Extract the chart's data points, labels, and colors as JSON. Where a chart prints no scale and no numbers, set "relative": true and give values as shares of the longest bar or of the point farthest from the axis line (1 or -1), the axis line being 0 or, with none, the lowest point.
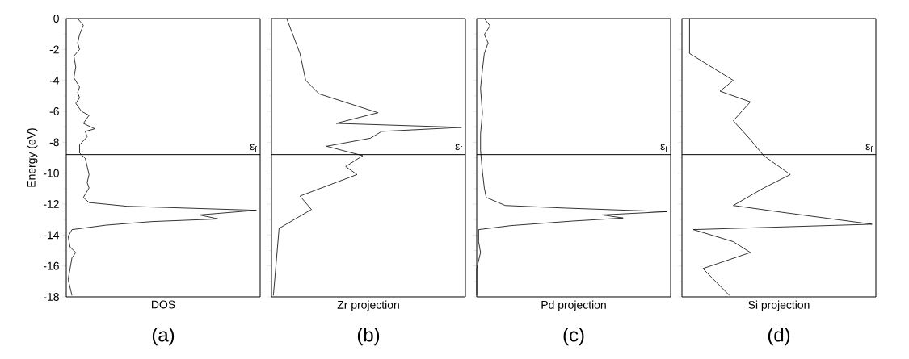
{
  "chart_data": [
    {
      "type": "line",
      "orientation": "horizontal",
      "relative": true,
      "title": "(a)",
      "xlabel": "DOS",
      "ylabel": "Energy (eV)",
      "color": "#000000",
      "marker": "none",
      "x": [
        0,
        -0.43,
        -1.04,
        -1.57,
        -2.0,
        -2.43,
        -3.13,
        -3.83,
        -4.43,
        -4.78,
        -5.13,
        -5.48,
        -6.0,
        -6.26,
        -6.78,
        -7.13,
        -7.3,
        -7.65,
        -8.17,
        -8.7,
        -9.04,
        -9.57,
        -10.09,
        -10.61,
        -10.96,
        -11.57,
        -11.9,
        -12.14,
        -12.4,
        -12.7,
        -12.96,
        -13.13,
        -13.36,
        -13.65,
        -14.09,
        -14.78,
        -15.13,
        -15.48,
        -16.87,
        -17.91
      ],
      "values": [
        0.06,
        0.09,
        0.07,
        0.06,
        0.07,
        0.04,
        0.05,
        0.04,
        0.07,
        0.06,
        0.07,
        0.05,
        0.08,
        0.12,
        0.09,
        0.15,
        0.1,
        0.11,
        0.07,
        0.07,
        0.1,
        0.11,
        0.12,
        0.11,
        0.12,
        0.09,
        0.12,
        0.32,
        1,
        0.7,
        0.8,
        0.45,
        0.21,
        0.03,
        0.01,
        0.02,
        0.05,
        0.03,
        0.01,
        0.03
      ],
      "ylim": [
        -18,
        0
      ],
      "yticks": [
        0,
        -2,
        -4,
        -6,
        -8,
        -10,
        -12,
        -14,
        -16,
        -18
      ],
      "tick_labels": "y",
      "ref_lines": [
        {
          "axis": "y",
          "value": -8.8,
          "label": "ε$_{f}$"
        }
      ]
    },
    {
      "type": "line",
      "orientation": "horizontal",
      "relative": true,
      "title": "(b)",
      "xlabel": "Zr projection",
      "color": "#000000",
      "marker": "none",
      "x": [
        0,
        -2.26,
        -4.0,
        -4.87,
        -6.09,
        -6.78,
        -7.04,
        -7.3,
        -7.74,
        -8.26,
        -8.87,
        -9.57,
        -10.09,
        -11.48,
        -12.35,
        -13.57,
        -17.91
      ],
      "values": [
        0.08,
        0.15,
        0.18,
        0.25,
        0.56,
        0.34,
        1,
        0.58,
        0.52,
        0.29,
        0.48,
        0.39,
        0.45,
        0.15,
        0.21,
        0.04,
        0.01
      ],
      "ylim": [
        -18,
        0
      ],
      "yticks": [
        0,
        -2,
        -4,
        -6,
        -8,
        -10,
        -12,
        -14,
        -16,
        -18
      ],
      "tick_labels": false,
      "ref_lines": [
        {
          "axis": "y",
          "value": -8.8,
          "label": "ε$_{f}$"
        }
      ]
    },
    {
      "type": "line",
      "orientation": "horizontal",
      "relative": true,
      "title": "(c)",
      "xlabel": "Pd projection",
      "color": "#000000",
      "marker": "none",
      "x": [
        0,
        -0.47,
        -1.04,
        -1.57,
        -2.26,
        -3.3,
        -4.52,
        -6.09,
        -7.48,
        -8.52,
        -9.91,
        -10.96,
        -11.57,
        -12.09,
        -12.26,
        -12.49,
        -12.7,
        -12.9,
        -13.1,
        -13.39,
        -13.65,
        -14.43,
        -15.13,
        -16.17,
        -17.91
      ],
      "values": [
        0.04,
        0.07,
        0.04,
        0.06,
        0.04,
        0.03,
        0.02,
        0.03,
        0.02,
        0.02,
        0.03,
        0.04,
        0.05,
        0.15,
        0.47,
        1,
        0.66,
        0.77,
        0.5,
        0.18,
        0.01,
        0.01,
        0.02,
        0,
        0
      ],
      "ylim": [
        -18,
        0
      ],
      "yticks": [
        0,
        -2,
        -4,
        -6,
        -8,
        -10,
        -12,
        -14,
        -16,
        -18
      ],
      "tick_labels": false,
      "ref_lines": [
        {
          "axis": "y",
          "value": -8.8,
          "label": "ε$_{f}$"
        }
      ]
    },
    {
      "type": "line",
      "orientation": "horizontal",
      "relative": true,
      "title": "(d)",
      "xlabel": "Si projection",
      "color": "#000000",
      "marker": "none",
      "x": [
        0,
        -2.26,
        -4.0,
        -4.7,
        -5.39,
        -6.61,
        -7.83,
        -8.87,
        -10.09,
        -10.96,
        -12.09,
        -12.52,
        -13.3,
        -13.65,
        -14.43,
        -15.13,
        -16.17,
        -17.91
      ],
      "values": [
        0.04,
        0.04,
        0.27,
        0.2,
        0.36,
        0.27,
        0.36,
        0.43,
        0.57,
        0.43,
        0.27,
        0.52,
        1,
        0.06,
        0.27,
        0.36,
        0.11,
        0.25
      ],
      "ylim": [
        -18,
        0
      ],
      "yticks": [
        0,
        -2,
        -4,
        -6,
        -8,
        -10,
        -12,
        -14,
        -16,
        -18
      ],
      "tick_labels": false,
      "ref_lines": [
        {
          "axis": "y",
          "value": -8.8,
          "label": "ε$_{f}$"
        }
      ]
    }
  ]
}
